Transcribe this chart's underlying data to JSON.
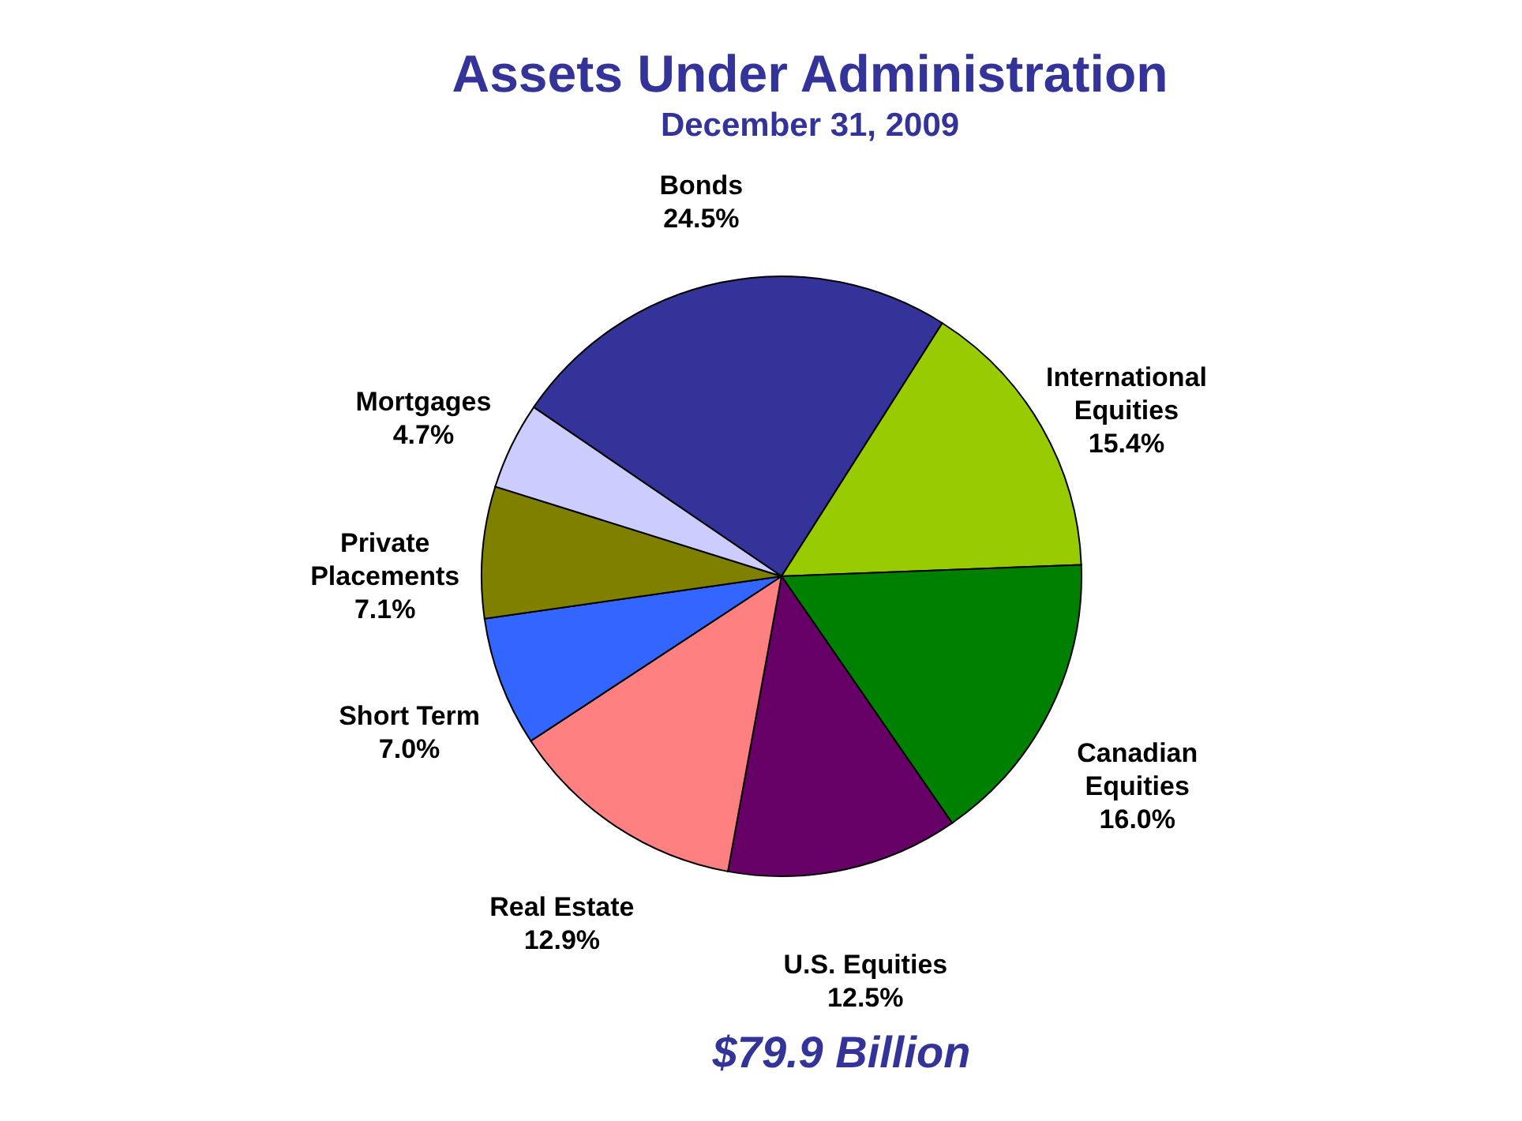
{
  "chart_data": {
    "type": "pie",
    "title": "Assets Under Administration",
    "subtitle": "December 31, 2009",
    "categories": [
      "Bonds",
      "International\nEquities",
      "Canadian\nEquities",
      "U.S. Equities",
      "Real Estate",
      "Short Term",
      "Private\nPlacements",
      "Mortgages"
    ],
    "values": [
      24.5,
      15.4,
      16.0,
      12.5,
      12.9,
      7.0,
      7.1,
      4.7
    ],
    "value_labels": [
      "24.5%",
      "15.4%",
      "16.0%",
      "12.5%",
      "12.9%",
      "7.0%",
      "7.1%",
      "4.7%"
    ],
    "colors": [
      "#333399",
      "#99cc00",
      "#008000",
      "#660066",
      "#ff8080",
      "#3366ff",
      "#808000",
      "#ccccff"
    ],
    "annotations": [
      "$79.9 Billion"
    ],
    "legend": false
  }
}
